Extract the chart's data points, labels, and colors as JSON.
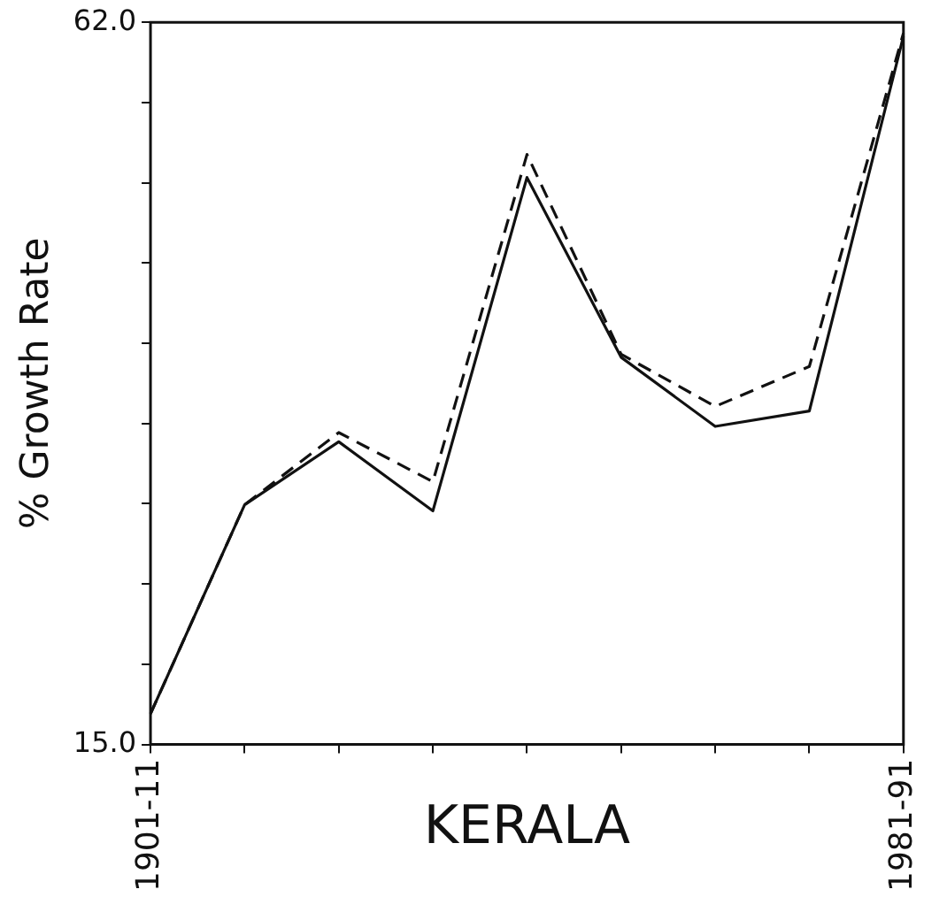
{
  "chart_data": {
    "type": "line",
    "xlabel": "KERALA",
    "ylabel": "% Growth Rate",
    "categories": [
      "1901-11",
      null,
      null,
      null,
      null,
      null,
      null,
      null,
      "1981-91"
    ],
    "series": [
      {
        "color": "#111111",
        "line_style": "solid",
        "values": [
          17.0,
          30.6,
          34.7,
          30.2,
          51.9,
          40.2,
          35.7,
          36.7,
          61.1
        ]
      },
      {
        "color": "#111111",
        "line_style": "dashed",
        "values": [
          17.0,
          30.6,
          35.3,
          32.1,
          53.4,
          40.4,
          37.0,
          39.6,
          61.3
        ]
      }
    ],
    "ylim": [
      15,
      62
    ],
    "yticks": [
      {
        "value": 15,
        "label": "15.0"
      },
      {
        "value": 20.22,
        "label": null
      },
      {
        "value": 25.44,
        "label": null
      },
      {
        "value": 30.67,
        "label": null
      },
      {
        "value": 35.89,
        "label": null
      },
      {
        "value": 41.11,
        "label": null
      },
      {
        "value": 46.33,
        "label": null
      },
      {
        "value": 51.56,
        "label": null
      },
      {
        "value": 56.78,
        "label": null
      },
      {
        "value": 62,
        "label": "62.0"
      }
    ],
    "grid": false,
    "legend": false,
    "marker": "none"
  }
}
